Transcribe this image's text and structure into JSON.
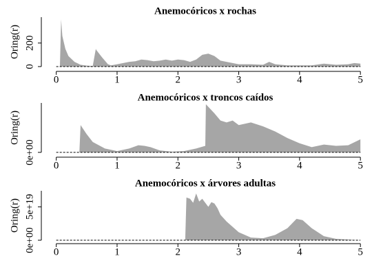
{
  "chart_data": [
    {
      "type": "area",
      "title": "Anemocóricos x rochas",
      "ylabel": "Oring(r)",
      "x": [
        0,
        0.06,
        0.08,
        0.1,
        0.15,
        0.2,
        0.3,
        0.4,
        0.5,
        0.6,
        0.65,
        0.66,
        0.75,
        0.85,
        0.9,
        1.0,
        1.1,
        1.2,
        1.3,
        1.4,
        1.5,
        1.6,
        1.7,
        1.8,
        1.9,
        2.0,
        2.1,
        2.2,
        2.3,
        2.4,
        2.5,
        2.6,
        2.7,
        2.8,
        2.9,
        3.0,
        3.2,
        3.4,
        3.5,
        3.6,
        3.8,
        4.0,
        4.2,
        4.4,
        4.6,
        4.8,
        4.9,
        5.0
      ],
      "values": [
        0,
        0,
        400,
        260,
        150,
        90,
        40,
        15,
        8,
        5,
        150,
        140,
        80,
        20,
        10,
        20,
        30,
        40,
        45,
        60,
        55,
        45,
        50,
        60,
        50,
        60,
        55,
        40,
        60,
        100,
        110,
        90,
        50,
        40,
        30,
        20,
        20,
        15,
        40,
        20,
        10,
        10,
        10,
        25,
        15,
        20,
        30,
        25
      ],
      "color": "#a6a6a6",
      "xlim": [
        -0.2,
        5.1
      ],
      "ylim": [
        0,
        420
      ],
      "xticks": [
        0,
        1,
        2,
        3,
        4,
        5
      ],
      "yticks": [
        0,
        200
      ]
    },
    {
      "type": "area",
      "title": "Anemocóricos x troncos caídos",
      "ylabel": "Oring(r)",
      "x": [
        0,
        0.38,
        0.4,
        0.5,
        0.6,
        0.8,
        1.0,
        1.2,
        1.35,
        1.45,
        1.55,
        1.7,
        1.9,
        2.1,
        2.3,
        2.45,
        2.46,
        2.6,
        2.7,
        2.8,
        2.9,
        3.0,
        3.2,
        3.4,
        3.6,
        3.8,
        4.0,
        4.2,
        4.4,
        4.6,
        4.8,
        5.0
      ],
      "values": [
        0,
        0,
        4.2e+19,
        2.8e+19,
        1.6e+19,
        6e+18,
        2e+18,
        6e+18,
        1.1e+19,
        1e+19,
        8e+18,
        3e+18,
        1e+18,
        2e+18,
        6e+18,
        1e+19,
        7.4e+19,
        6e+19,
        4.9e+19,
        4.6e+19,
        4.9e+19,
        4.2e+19,
        4.6e+19,
        4e+19,
        3.2e+19,
        2.2e+19,
        1.4e+19,
        8e+18,
        1.2e+19,
        1e+19,
        1.1e+19,
        2e+19
      ],
      "color": "#a6a6a6",
      "xlim": [
        -0.2,
        5.1
      ],
      "ylim": [
        0,
        7.6e+19
      ],
      "xticks": [
        0,
        1,
        2,
        3,
        4,
        5
      ],
      "yticks": [
        {
          "value": 0,
          "label": "0e+00"
        }
      ]
    },
    {
      "type": "area",
      "title": "Anemocóricos x árvores adultas",
      "ylabel": "Oring(r)",
      "x": [
        0,
        2.12,
        2.14,
        2.2,
        2.25,
        2.3,
        2.35,
        2.4,
        2.5,
        2.55,
        2.6,
        2.65,
        2.7,
        2.8,
        3.0,
        3.2,
        3.4,
        3.6,
        3.8,
        3.95,
        4.05,
        4.2,
        4.4,
        4.6,
        4.8,
        4.95,
        5.0
      ],
      "values": [
        0,
        0,
        6.4e+19,
        6.2e+19,
        5.6e+19,
        7e+19,
        5.8e+19,
        6.2e+19,
        5e+19,
        5.7e+19,
        5.5e+19,
        4.8e+19,
        3.8e+19,
        2.8e+19,
        1.2e+19,
        4e+18,
        3e+18,
        8e+18,
        1.8e+19,
        3.2e+19,
        3e+19,
        1.8e+19,
        6e+18,
        2e+18,
        1e+18,
        0,
        0
      ],
      "color": "#a6a6a6",
      "xlim": [
        -0.2,
        5.1
      ],
      "ylim": [
        0,
        7.4e+19
      ],
      "xticks": [
        0,
        1,
        2,
        3,
        4,
        5
      ],
      "yticks": [
        {
          "value": 0,
          "label": "0e+00"
        },
        {
          "value": 5e+19,
          "label": "5e+19"
        }
      ]
    }
  ]
}
